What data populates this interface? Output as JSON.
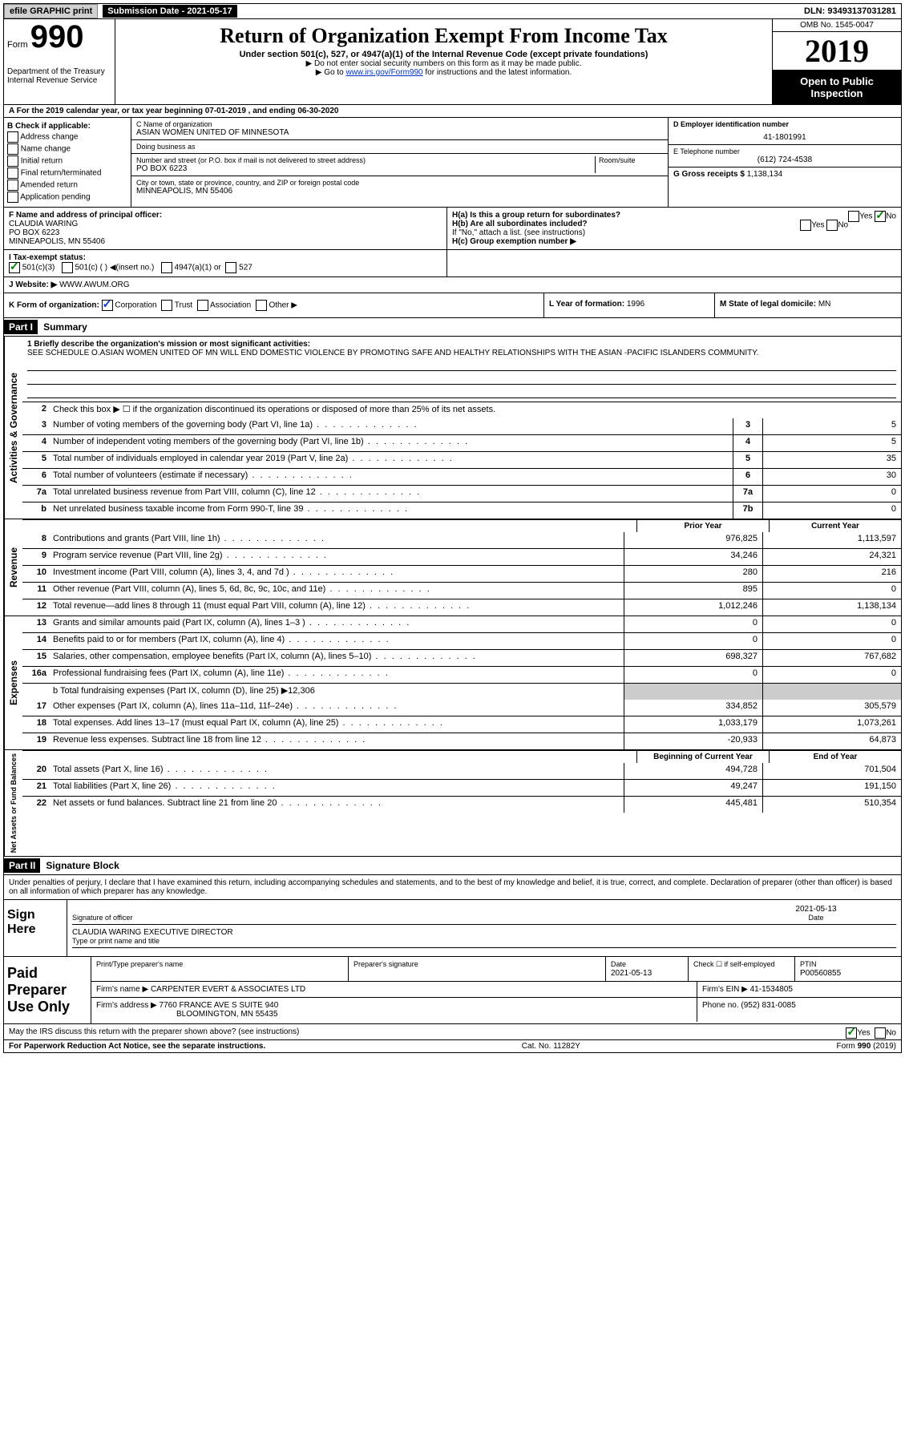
{
  "topbar": {
    "efile": "efile GRAPHIC print",
    "sub_date_label": "Submission Date - 2021-05-17",
    "dln": "DLN: 93493137031281"
  },
  "header": {
    "form_label": "Form",
    "form_num": "990",
    "dept": "Department of the Treasury\nInternal Revenue Service",
    "title": "Return of Organization Exempt From Income Tax",
    "sub1": "Under section 501(c), 527, or 4947(a)(1) of the Internal Revenue Code (except private foundations)",
    "sub2": "▶ Do not enter social security numbers on this form as it may be made public.",
    "sub3_pre": "▶ Go to ",
    "sub3_link": "www.irs.gov/Form990",
    "sub3_post": " for instructions and the latest information.",
    "omb": "OMB No. 1545-0047",
    "year": "2019",
    "open": "Open to Public Inspection"
  },
  "row_a": "A For the 2019 calendar year, or tax year beginning 07-01-2019   , and ending 06-30-2020",
  "col_b": {
    "label": "B Check if applicable:",
    "items": [
      "Address change",
      "Name change",
      "Initial return",
      "Final return/terminated",
      "Amended return",
      "Application pending"
    ]
  },
  "col_c": {
    "name_label": "C Name of organization",
    "name": "ASIAN WOMEN UNITED OF MINNESOTA",
    "dba_label": "Doing business as",
    "dba": "",
    "addr_label": "Number and street (or P.O. box if mail is not delivered to street address)",
    "room_label": "Room/suite",
    "addr": "PO BOX 6223",
    "city_label": "City or town, state or province, country, and ZIP or foreign postal code",
    "city": "MINNEAPOLIS, MN  55406"
  },
  "col_d": {
    "ein_label": "D Employer identification number",
    "ein": "41-1801991",
    "phone_label": "E Telephone number",
    "phone": "(612) 724-4538",
    "gross_label": "G Gross receipts $",
    "gross": "1,138,134"
  },
  "row_f": {
    "label": "F  Name and address of principal officer:",
    "name": "CLAUDIA WARING",
    "addr1": "PO BOX 6223",
    "addr2": "MINNEAPOLIS, MN  55406"
  },
  "row_h": {
    "ha": "H(a)  Is this a group return for subordinates?",
    "hb": "H(b)  Are all subordinates included?",
    "hb_note": "If \"No,\" attach a list. (see instructions)",
    "hc": "H(c)  Group exemption number ▶"
  },
  "tax_status": {
    "label": "I   Tax-exempt status:",
    "opt1": "501(c)(3)",
    "opt2": "501(c) (  ) ◀(insert no.)",
    "opt3": "4947(a)(1) or",
    "opt4": "527"
  },
  "website": {
    "label": "J   Website: ▶",
    "value": "WWW.AWUM.ORG"
  },
  "row_k": {
    "k_label": "K Form of organization:",
    "corp": "Corporation",
    "trust": "Trust",
    "assoc": "Association",
    "other": "Other ▶",
    "l_label": "L Year of formation:",
    "l_val": "1996",
    "m_label": "M State of legal domicile:",
    "m_val": "MN"
  },
  "part1": {
    "header": "Part I",
    "title": "Summary",
    "line1_label": "1  Briefly describe the organization's mission or most significant activities:",
    "line1_text": "SEE SCHEDULE O.ASIAN WOMEN UNITED OF MN WILL END DOMESTIC VIOLENCE BY PROMOTING SAFE AND HEALTHY RELATIONSHIPS WITH THE ASIAN -PACIFIC ISLANDERS COMMUNITY.",
    "line2": "Check this box ▶ ☐  if the organization discontinued its operations or disposed of more than 25% of its net assets.",
    "lines_governance": [
      {
        "n": "3",
        "d": "Number of voting members of the governing body (Part VI, line 1a)",
        "box": "3",
        "v": "5"
      },
      {
        "n": "4",
        "d": "Number of independent voting members of the governing body (Part VI, line 1b)",
        "box": "4",
        "v": "5"
      },
      {
        "n": "5",
        "d": "Total number of individuals employed in calendar year 2019 (Part V, line 2a)",
        "box": "5",
        "v": "35"
      },
      {
        "n": "6",
        "d": "Total number of volunteers (estimate if necessary)",
        "box": "6",
        "v": "30"
      },
      {
        "n": "7a",
        "d": "Total unrelated business revenue from Part VIII, column (C), line 12",
        "box": "7a",
        "v": "0"
      },
      {
        "n": "b",
        "d": "Net unrelated business taxable income from Form 990-T, line 39",
        "box": "7b",
        "v": "0"
      }
    ],
    "prior_year": "Prior Year",
    "current_year": "Current Year",
    "lines_revenue": [
      {
        "n": "8",
        "d": "Contributions and grants (Part VIII, line 1h)",
        "p": "976,825",
        "c": "1,113,597"
      },
      {
        "n": "9",
        "d": "Program service revenue (Part VIII, line 2g)",
        "p": "34,246",
        "c": "24,321"
      },
      {
        "n": "10",
        "d": "Investment income (Part VIII, column (A), lines 3, 4, and 7d )",
        "p": "280",
        "c": "216"
      },
      {
        "n": "11",
        "d": "Other revenue (Part VIII, column (A), lines 5, 6d, 8c, 9c, 10c, and 11e)",
        "p": "895",
        "c": "0"
      },
      {
        "n": "12",
        "d": "Total revenue—add lines 8 through 11 (must equal Part VIII, column (A), line 12)",
        "p": "1,012,246",
        "c": "1,138,134"
      }
    ],
    "lines_expenses": [
      {
        "n": "13",
        "d": "Grants and similar amounts paid (Part IX, column (A), lines 1–3 )",
        "p": "0",
        "c": "0"
      },
      {
        "n": "14",
        "d": "Benefits paid to or for members (Part IX, column (A), line 4)",
        "p": "0",
        "c": "0"
      },
      {
        "n": "15",
        "d": "Salaries, other compensation, employee benefits (Part IX, column (A), lines 5–10)",
        "p": "698,327",
        "c": "767,682"
      },
      {
        "n": "16a",
        "d": "Professional fundraising fees (Part IX, column (A), line 11e)",
        "p": "0",
        "c": "0"
      }
    ],
    "line16b": "b  Total fundraising expenses (Part IX, column (D), line 25) ▶12,306",
    "lines_expenses2": [
      {
        "n": "17",
        "d": "Other expenses (Part IX, column (A), lines 11a–11d, 11f–24e)",
        "p": "334,852",
        "c": "305,579"
      },
      {
        "n": "18",
        "d": "Total expenses. Add lines 13–17 (must equal Part IX, column (A), line 25)",
        "p": "1,033,179",
        "c": "1,073,261"
      },
      {
        "n": "19",
        "d": "Revenue less expenses. Subtract line 18 from line 12",
        "p": "-20,933",
        "c": "64,873"
      }
    ],
    "begin_year": "Beginning of Current Year",
    "end_year": "End of Year",
    "lines_assets": [
      {
        "n": "20",
        "d": "Total assets (Part X, line 16)",
        "p": "494,728",
        "c": "701,504"
      },
      {
        "n": "21",
        "d": "Total liabilities (Part X, line 26)",
        "p": "49,247",
        "c": "191,150"
      },
      {
        "n": "22",
        "d": "Net assets or fund balances. Subtract line 21 from line 20",
        "p": "445,481",
        "c": "510,354"
      }
    ]
  },
  "part2": {
    "header": "Part II",
    "title": "Signature Block",
    "declare": "Under penalties of perjury, I declare that I have examined this return, including accompanying schedules and statements, and to the best of my knowledge and belief, it is true, correct, and complete. Declaration of preparer (other than officer) is based on all information of which preparer has any knowledge.",
    "sign_here": "Sign Here",
    "sig_officer": "Signature of officer",
    "sig_date": "2021-05-13",
    "date_label": "Date",
    "officer_name": "CLAUDIA WARING EXECUTIVE DIRECTOR",
    "type_name": "Type or print name and title",
    "paid_label": "Paid Preparer Use Only",
    "prep_name_label": "Print/Type preparer's name",
    "prep_sig_label": "Preparer's signature",
    "prep_date_label": "Date",
    "prep_date": "2021-05-13",
    "check_self": "Check ☐ if self-employed",
    "ptin_label": "PTIN",
    "ptin": "P00560855",
    "firm_name_label": "Firm's name    ▶",
    "firm_name": "CARPENTER EVERT & ASSOCIATES LTD",
    "firm_ein_label": "Firm's EIN ▶",
    "firm_ein": "41-1534805",
    "firm_addr_label": "Firm's address ▶",
    "firm_addr": "7760 FRANCE AVE S SUITE 940",
    "firm_city": "BLOOMINGTON, MN  55435",
    "firm_phone_label": "Phone no.",
    "firm_phone": "(952) 831-0085",
    "discuss": "May the IRS discuss this return with the preparer shown above? (see instructions)",
    "paperwork": "For Paperwork Reduction Act Notice, see the separate instructions.",
    "cat": "Cat. No. 11282Y",
    "form_footer": "Form 990 (2019)"
  },
  "side_labels": {
    "gov": "Activities & Governance",
    "rev": "Revenue",
    "exp": "Expenses",
    "net": "Net Assets or Fund Balances"
  }
}
